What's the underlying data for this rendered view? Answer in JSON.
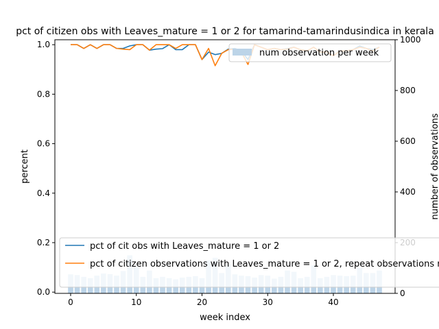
{
  "chart_data": {
    "type": "bar+line",
    "title": "pct of citizen obs with Leaves_mature = 1 or 2 for tamarind-tamarindusindica in kerala",
    "xlabel": "week index",
    "ylabel": "percent",
    "ylabel_right": "number of observations",
    "xlim": [
      -2.4,
      49.4
    ],
    "ylim": [
      -0.005,
      1.02
    ],
    "ylim_right": [
      0,
      1000
    ],
    "x_ticks": [
      "0",
      "10",
      "20",
      "30",
      "40"
    ],
    "x_tick_values": [
      0,
      10,
      20,
      30,
      40
    ],
    "y_ticks": [
      "0.0",
      "0.2",
      "0.4",
      "0.6",
      "0.8",
      "1.0"
    ],
    "y_tick_values": [
      0,
      0.2,
      0.4,
      0.6,
      0.8,
      1.0
    ],
    "y_ticks_right": [
      "0",
      "200",
      "400",
      "600",
      "800",
      "1000"
    ],
    "y_tick_values_right": [
      0,
      200,
      400,
      600,
      800,
      1000
    ],
    "grid": false,
    "legend_top_right": "num observation per week",
    "legend_bottom": [
      "pct of cit obs with Leaves_mature = 1 or 2",
      "pct of citizen observations with Leaves_mature = 1 or 2, repeat observations removed"
    ],
    "colors": {
      "bars": "#bcd4e8",
      "series1": "#1f77b4",
      "series2": "#ff7f0e"
    },
    "weeks": [
      0,
      1,
      2,
      3,
      4,
      5,
      6,
      7,
      8,
      9,
      10,
      11,
      12,
      13,
      14,
      15,
      16,
      17,
      18,
      19,
      20,
      21,
      22,
      23,
      24,
      25,
      26,
      27,
      28,
      29,
      30,
      31,
      32,
      33,
      34,
      35,
      36,
      37,
      38,
      39,
      40,
      41,
      42,
      43,
      44,
      45,
      46,
      47
    ],
    "bar_counts": [
      75,
      72,
      65,
      60,
      70,
      78,
      76,
      70,
      88,
      150,
      105,
      65,
      90,
      60,
      65,
      60,
      55,
      62,
      65,
      68,
      60,
      130,
      140,
      80,
      115,
      75,
      70,
      68,
      62,
      72,
      70,
      58,
      65,
      90,
      85,
      60,
      65,
      110,
      60,
      65,
      72,
      70,
      68,
      70,
      100,
      80,
      80,
      90
    ],
    "series": [
      {
        "name": "pct of cit obs with Leaves_mature = 1 or 2",
        "values": [
          1.0,
          1.0,
          0.985,
          1.0,
          0.985,
          1.0,
          1.0,
          0.985,
          0.985,
          0.995,
          1.0,
          1.0,
          0.978,
          0.982,
          0.984,
          1.0,
          0.98,
          0.98,
          1.0,
          1.0,
          0.94,
          0.97,
          0.96,
          0.965,
          0.982,
          0.985,
          0.975,
          0.94,
          1.0,
          0.99,
          0.98,
          0.985,
          0.98,
          0.984,
          0.99,
          0.98,
          0.975,
          0.99,
          0.97,
          0.97,
          0.955,
          0.975,
          0.975,
          0.98,
          0.995,
          0.985,
          0.98,
          0.99
        ]
      },
      {
        "name": "pct of citizen observations with Leaves_mature = 1 or 2, repeat observations removed",
        "values": [
          1.0,
          1.0,
          0.985,
          1.0,
          0.985,
          1.0,
          1.0,
          0.985,
          0.982,
          0.98,
          1.0,
          1.0,
          0.978,
          1.0,
          1.0,
          1.0,
          0.985,
          1.0,
          1.0,
          1.0,
          0.94,
          0.985,
          0.915,
          0.965,
          0.98,
          0.982,
          0.97,
          0.92,
          1.0,
          0.99,
          0.98,
          0.985,
          0.98,
          0.982,
          0.99,
          0.98,
          0.975,
          0.99,
          0.97,
          0.97,
          0.955,
          0.975,
          0.975,
          0.98,
          0.99,
          0.985,
          0.975,
          0.99
        ]
      }
    ]
  }
}
